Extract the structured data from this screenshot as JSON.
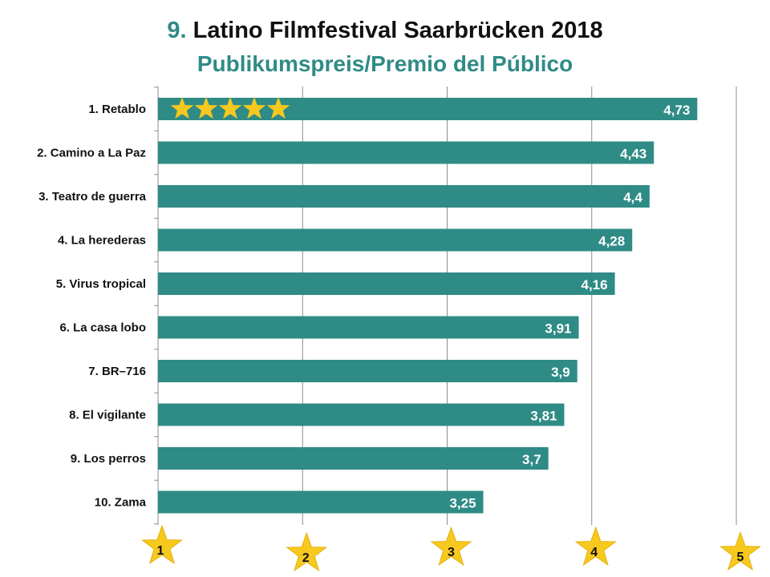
{
  "header": {
    "title_number": "9.",
    "title_text": "Latino Filmfestival Saarbrücken 2018",
    "subtitle": "Publikumspreis/Premio del Público"
  },
  "colors": {
    "bar": "#2f8b86",
    "star": "#f7c81e",
    "star_stroke": "#e0a800",
    "grid": "#8c8c8c"
  },
  "chart_data": {
    "type": "bar",
    "orientation": "horizontal",
    "title": "9. Latino Filmfestival Saarbrücken 2018",
    "subtitle": "Publikumspreis/Premio del Público",
    "categories": [
      "1. Retablo",
      "2. Camino a La Paz",
      "3. Teatro de guerra",
      "4. La herederas",
      "5. Virus tropical",
      "6. La casa lobo",
      "7. BR–716",
      "8. El vigilante",
      "9. Los perros",
      "10. Zama"
    ],
    "values": [
      4.73,
      4.43,
      4.4,
      4.28,
      4.16,
      3.91,
      3.9,
      3.81,
      3.7,
      3.25
    ],
    "value_labels": [
      "4,73",
      "4,43",
      "4,4",
      "4,28",
      "4,16",
      "3,91",
      "3,9",
      "3,81",
      "3,7",
      "3,25"
    ],
    "xlim": [
      1,
      5
    ],
    "x_ticks": [
      "1",
      "2",
      "3",
      "4",
      "5"
    ],
    "x_tick_marker": "star",
    "grid": "vertical",
    "highlight": {
      "category": "1. Retablo",
      "stars": 5
    }
  }
}
